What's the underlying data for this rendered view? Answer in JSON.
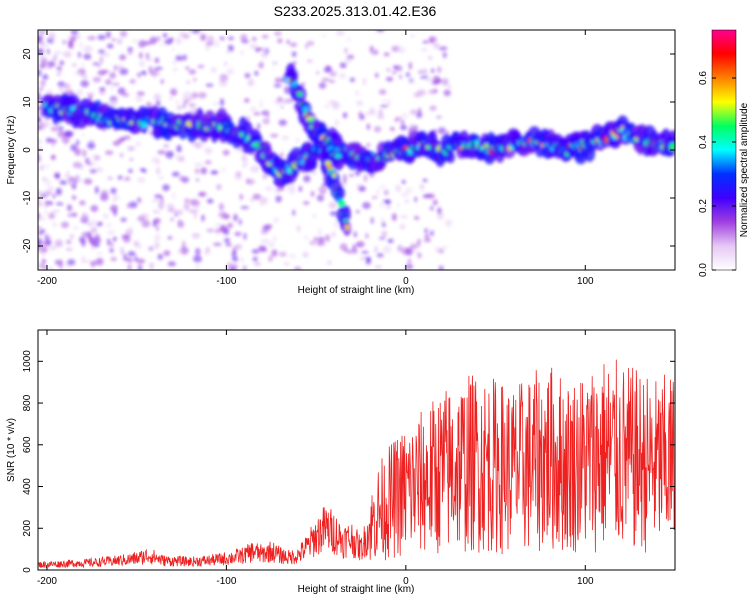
{
  "title": "S233.2025.313.01.42.E36",
  "chart_data": [
    {
      "type": "heatmap",
      "xlabel": "Height of straight line (km)",
      "ylabel": "Frequency (Hz)",
      "xlim": [
        -205,
        150
      ],
      "ylim": [
        -25,
        25
      ],
      "xticks": [
        -200,
        -100,
        0,
        100
      ],
      "yticks": [
        -20,
        -10,
        0,
        10,
        20
      ],
      "colorbar": {
        "label": "Normalized spectral amplitude",
        "range": [
          0.0,
          0.75
        ],
        "ticks": [
          "0.0",
          "0.2",
          "0.4",
          "0.6"
        ],
        "tick_values": [
          0.0,
          0.2,
          0.4,
          0.6
        ],
        "colors": [
          "#ffffff",
          "#e6c8f5",
          "#a040e0",
          "#4000ff",
          "#0030ff",
          "#00ffff",
          "#00ff60",
          "#ffff00",
          "#ff8000",
          "#ff0000",
          "#ff0090"
        ]
      },
      "ridges": [
        {
          "name": "main band",
          "x": [
            -200,
            -180,
            -160,
            -140,
            -120,
            -100,
            -90,
            -80,
            -75,
            -70,
            -60,
            -50,
            -40,
            -30,
            -20,
            -10,
            0,
            10,
            20,
            30,
            40,
            50,
            60,
            70,
            80,
            90,
            100,
            110,
            120,
            130,
            140,
            150
          ],
          "y": [
            9,
            8,
            6,
            6,
            5,
            5,
            3,
            0,
            -3,
            -5,
            -3,
            0,
            1,
            -1,
            -2,
            -1,
            0,
            1,
            0,
            1,
            1,
            0,
            1,
            2,
            1,
            0,
            1,
            2,
            4,
            2,
            1,
            1
          ]
        },
        {
          "name": "upper streak",
          "x": [
            -65,
            -60,
            -55,
            -50,
            -45,
            -40,
            -37
          ],
          "y": [
            15,
            12,
            7,
            4,
            2,
            0,
            -1
          ]
        },
        {
          "name": "lower streak",
          "x": [
            -45,
            -40,
            -35,
            -32
          ],
          "y": [
            -2,
            -6,
            -13,
            -17
          ]
        }
      ]
    },
    {
      "type": "line",
      "xlabel": "Height of straight line (km)",
      "ylabel": "SNR (10 * v/v)",
      "xlim": [
        -205,
        150
      ],
      "ylim": [
        0,
        1150
      ],
      "xticks": [
        -200,
        -100,
        0,
        100
      ],
      "yticks": [
        0,
        200,
        400,
        600,
        800,
        1000
      ],
      "series": [
        {
          "color": "#ee2020",
          "x": [
            -205,
            -190,
            -175,
            -160,
            -150,
            -143,
            -135,
            -120,
            -110,
            -100,
            -90,
            -85,
            -80,
            -75,
            -70,
            -65,
            -60,
            -55,
            -50,
            -45,
            -40,
            -35,
            -30,
            -25,
            -20,
            -15,
            -10,
            -5,
            0,
            10,
            20,
            30,
            40,
            50,
            60,
            70,
            80,
            90,
            100,
            110,
            120,
            130,
            140,
            150
          ],
          "y": [
            25,
            30,
            35,
            45,
            55,
            70,
            45,
            40,
            45,
            55,
            70,
            90,
            75,
            90,
            70,
            60,
            70,
            110,
            160,
            200,
            180,
            140,
            150,
            100,
            200,
            280,
            320,
            350,
            380,
            420,
            470,
            500,
            520,
            500,
            480,
            510,
            540,
            500,
            520,
            560,
            540,
            520,
            500,
            520
          ]
        }
      ]
    }
  ]
}
